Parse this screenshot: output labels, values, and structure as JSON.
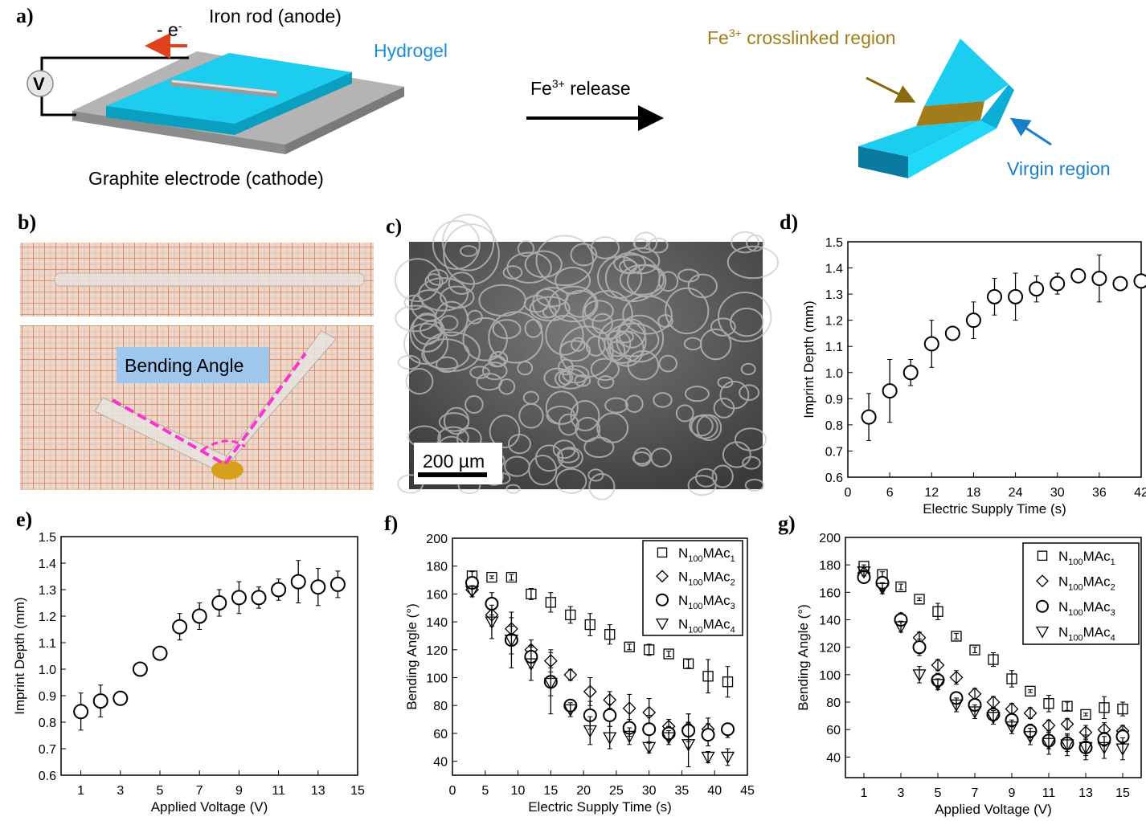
{
  "panels": {
    "a": "a)",
    "b": "b)",
    "c": "c)",
    "d": "d)",
    "e": "e)",
    "f": "f)",
    "g": "g)"
  },
  "schematic": {
    "iron_rod": "Iron rod (anode)",
    "electron": "- e",
    "electron_sup": "-",
    "hydrogel": "Hydrogel",
    "voltmeter": "V",
    "graphite": "Graphite electrode (cathode)",
    "release_pre": "Fe",
    "release_sup": "3+",
    "release_post": " release",
    "crosslinked_pre": "Fe",
    "crosslinked_sup": "3+",
    "crosslinked_post": " crosslinked region",
    "virgin": "Virgin region",
    "colors": {
      "hydrogel": "#1ccdf0",
      "crosslinked": "#a07c1a",
      "electron_arrow": "#e0401c",
      "virgin_arrow": "#1a7fc8",
      "graphite": "#a9a9a9"
    }
  },
  "photo": {
    "bending_label": "Bending Angle",
    "scale_bar": "200 µm"
  },
  "chart_data": [
    {
      "id": "d",
      "type": "scatter",
      "xlabel": "Electric Supply Time (s)",
      "ylabel": "Imprint Depth (mm)",
      "xlim": [
        0,
        42
      ],
      "ylim": [
        0.6,
        1.5
      ],
      "xticks": [
        0,
        6,
        12,
        18,
        24,
        30,
        36,
        42
      ],
      "yticks": [
        0.6,
        0.7,
        0.8,
        0.9,
        1.0,
        1.1,
        1.2,
        1.3,
        1.4,
        1.5
      ],
      "series": [
        {
          "name": "",
          "marker": "circle",
          "x": [
            3,
            6,
            9,
            12,
            15,
            18,
            21,
            24,
            27,
            30,
            33,
            36,
            39,
            42
          ],
          "y": [
            0.83,
            0.93,
            1.0,
            1.11,
            1.15,
            1.2,
            1.29,
            1.29,
            1.32,
            1.34,
            1.37,
            1.36,
            1.34,
            1.35
          ],
          "err": [
            0.09,
            0.12,
            0.05,
            0.09,
            0.02,
            0.07,
            0.07,
            0.09,
            0.05,
            0.04,
            0.02,
            0.09,
            0.02,
            0.01
          ]
        }
      ]
    },
    {
      "id": "e",
      "type": "scatter",
      "xlabel": "Applied Voltage (V)",
      "ylabel": "Imprint Depth (mm)",
      "xlim": [
        0,
        15
      ],
      "ylim": [
        0.6,
        1.5
      ],
      "xticks": [
        1,
        3,
        5,
        7,
        9,
        11,
        13,
        15
      ],
      "yticks": [
        0.6,
        0.7,
        0.8,
        0.9,
        1.0,
        1.1,
        1.2,
        1.3,
        1.4,
        1.5
      ],
      "series": [
        {
          "name": "",
          "marker": "circle",
          "x": [
            1,
            2,
            3,
            4,
            5,
            6,
            7,
            8,
            9,
            10,
            11,
            12,
            13,
            14
          ],
          "y": [
            0.84,
            0.88,
            0.89,
            1.0,
            1.06,
            1.16,
            1.2,
            1.25,
            1.27,
            1.27,
            1.3,
            1.33,
            1.31,
            1.32
          ],
          "err": [
            0.07,
            0.06,
            0.02,
            0.02,
            0.02,
            0.05,
            0.05,
            0.05,
            0.06,
            0.04,
            0.04,
            0.08,
            0.07,
            0.05
          ]
        }
      ]
    },
    {
      "id": "f",
      "type": "scatter",
      "xlabel": "Electric Supply Time (s)",
      "ylabel": "Bending Angle (°)",
      "xlim": [
        0,
        45
      ],
      "ylim": [
        30,
        200
      ],
      "xticks": [
        0,
        5,
        10,
        15,
        20,
        25,
        30,
        35,
        40,
        45
      ],
      "yticks": [
        40,
        60,
        80,
        100,
        120,
        140,
        160,
        180,
        200
      ],
      "legend": "top-right",
      "series": [
        {
          "name": "N",
          "sub1": "100",
          "mid": "MAc",
          "sub2": "1",
          "marker": "square",
          "x": [
            3,
            6,
            9,
            12,
            15,
            18,
            21,
            24,
            27,
            30,
            33,
            36,
            39,
            42
          ],
          "y": [
            173,
            172,
            172,
            160,
            154,
            145,
            138,
            131,
            122,
            120,
            117,
            110,
            101,
            97
          ],
          "err": [
            3,
            1,
            2,
            4,
            7,
            6,
            8,
            7,
            2,
            4,
            2,
            3,
            12,
            11
          ]
        },
        {
          "name": "N",
          "sub1": "100",
          "mid": "MAc",
          "sub2": "2",
          "marker": "diamond",
          "x": [
            3,
            6,
            9,
            12,
            15,
            18,
            21,
            24,
            27,
            30,
            33,
            36,
            39,
            42
          ],
          "y": [
            163,
            145,
            135,
            120,
            112,
            102,
            90,
            84,
            78,
            75,
            65,
            64,
            63,
            62
          ],
          "err": [
            5,
            8,
            8,
            7,
            8,
            4,
            10,
            6,
            10,
            10,
            5,
            10,
            8,
            5
          ]
        },
        {
          "name": "N",
          "sub1": "100",
          "mid": "MAc",
          "sub2": "3",
          "marker": "circle",
          "x": [
            3,
            6,
            9,
            12,
            15,
            18,
            21,
            24,
            27,
            30,
            33,
            36,
            39,
            42
          ],
          "y": [
            168,
            153,
            127,
            115,
            97,
            80,
            73,
            73,
            64,
            63,
            60,
            62,
            59,
            63
          ],
          "err": [
            4,
            8,
            10,
            8,
            10,
            4,
            10,
            8,
            6,
            10,
            5,
            12,
            8,
            4
          ]
        },
        {
          "name": "N",
          "sub1": "100",
          "mid": "MAc",
          "sub2": "4",
          "marker": "triangle",
          "x": [
            3,
            6,
            9,
            12,
            15,
            18,
            21,
            24,
            27,
            30,
            33,
            36,
            39,
            42
          ],
          "y": [
            162,
            140,
            127,
            110,
            96,
            77,
            62,
            57,
            58,
            50,
            57,
            52,
            43,
            43
          ],
          "err": [
            4,
            12,
            20,
            12,
            22,
            5,
            10,
            8,
            6,
            4,
            5,
            16,
            4,
            6
          ]
        }
      ]
    },
    {
      "id": "g",
      "type": "scatter",
      "xlabel": "Applied Voltage (V)",
      "ylabel": "Bending Angle (°)",
      "xlim": [
        0,
        16
      ],
      "ylim": [
        25,
        200
      ],
      "xticks": [
        1,
        3,
        5,
        7,
        9,
        11,
        13,
        15
      ],
      "yticks": [
        40,
        60,
        80,
        100,
        120,
        140,
        160,
        180,
        200
      ],
      "legend": "top-right",
      "series": [
        {
          "name": "N",
          "sub1": "100",
          "mid": "MAc",
          "sub2": "1",
          "marker": "square",
          "x": [
            1,
            2,
            3,
            4,
            5,
            6,
            7,
            8,
            9,
            10,
            11,
            12,
            13,
            14,
            15
          ],
          "y": [
            179,
            173,
            164,
            155,
            146,
            128,
            118,
            111,
            97,
            88,
            79,
            77,
            71,
            76,
            75
          ],
          "err": [
            1,
            2,
            2,
            1,
            6,
            2,
            2,
            5,
            6,
            1,
            6,
            3,
            1,
            8,
            5
          ]
        },
        {
          "name": "N",
          "sub1": "100",
          "mid": "MAc",
          "sub2": "2",
          "marker": "diamond",
          "x": [
            1,
            2,
            3,
            4,
            5,
            6,
            7,
            8,
            9,
            10,
            11,
            12,
            13,
            14,
            15
          ],
          "y": [
            174,
            165,
            141,
            127,
            107,
            98,
            86,
            80,
            75,
            72,
            63,
            64,
            58,
            60,
            59
          ],
          "err": [
            2,
            4,
            4,
            4,
            4,
            5,
            4,
            4,
            4,
            4,
            4,
            4,
            5,
            5,
            4
          ]
        },
        {
          "name": "N",
          "sub1": "100",
          "mid": "MAc",
          "sub2": "3",
          "marker": "circle",
          "x": [
            1,
            2,
            3,
            4,
            5,
            6,
            7,
            8,
            9,
            10,
            11,
            12,
            13,
            14,
            15
          ],
          "y": [
            171,
            167,
            140,
            120,
            96,
            83,
            78,
            71,
            67,
            59,
            52,
            50,
            47,
            53,
            55
          ],
          "err": [
            2,
            3,
            4,
            6,
            5,
            4,
            4,
            4,
            5,
            5,
            6,
            6,
            6,
            5,
            5
          ]
        },
        {
          "name": "N",
          "sub1": "100",
          "mid": "MAc",
          "sub2": "4",
          "marker": "triangle",
          "x": [
            1,
            2,
            3,
            4,
            5,
            6,
            7,
            8,
            9,
            10,
            11,
            12,
            13,
            14,
            15
          ],
          "y": [
            175,
            163,
            135,
            100,
            93,
            78,
            73,
            69,
            62,
            55,
            50,
            49,
            47,
            47,
            46
          ],
          "err": [
            3,
            4,
            4,
            6,
            4,
            5,
            5,
            5,
            5,
            6,
            8,
            8,
            9,
            8,
            8
          ]
        }
      ]
    }
  ]
}
